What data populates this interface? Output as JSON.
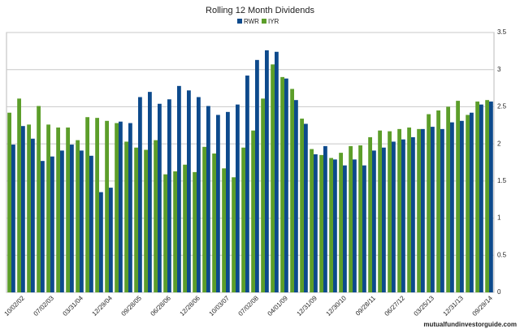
{
  "chart_data": {
    "type": "bar",
    "title": "Rolling 12 Month Dividends",
    "categories": [
      null,
      "10/02/02",
      null,
      null,
      "07/02/03",
      null,
      null,
      "03/31/04",
      null,
      null,
      "12/29/04",
      null,
      null,
      "09/28/05",
      null,
      null,
      "06/28/06",
      null,
      null,
      "12/28/06",
      null,
      null,
      "10/03/07",
      null,
      null,
      "07/02/08",
      null,
      null,
      "04/01/09",
      null,
      null,
      "12/31/09",
      null,
      null,
      "12/30/10",
      null,
      null,
      "09/28/11",
      null,
      null,
      "06/27/12",
      null,
      null,
      "03/25/13",
      null,
      null,
      "12/31/13",
      null,
      null,
      "09/29/14"
    ],
    "series": [
      {
        "name": "RWR",
        "color": "#0d4a8c",
        "values": [
          1.99,
          2.24,
          2.07,
          1.77,
          1.83,
          1.91,
          1.99,
          1.91,
          1.84,
          1.35,
          1.41,
          2.3,
          2.28,
          2.63,
          2.7,
          2.54,
          2.6,
          2.78,
          2.72,
          2.63,
          2.51,
          2.39,
          2.43,
          2.53,
          2.92,
          3.13,
          3.26,
          3.24,
          2.88,
          2.59,
          2.27,
          1.86,
          1.97,
          1.79,
          1.71,
          1.79,
          1.71,
          1.91,
          1.95,
          2.03,
          2.06,
          2.09,
          2.2,
          2.23,
          2.2,
          2.29,
          2.31,
          2.42,
          2.53,
          2.57
        ]
      },
      {
        "name": "IYR",
        "color": "#5c9e2a",
        "values": [
          2.42,
          2.61,
          2.26,
          2.51,
          2.26,
          2.22,
          2.22,
          2.05,
          2.36,
          2.35,
          2.31,
          2.28,
          2.03,
          1.95,
          1.92,
          2.05,
          1.59,
          1.63,
          1.72,
          1.62,
          1.96,
          1.87,
          1.67,
          1.55,
          1.95,
          2.18,
          2.61,
          3.07,
          2.9,
          2.74,
          2.34,
          1.93,
          1.85,
          1.81,
          1.88,
          1.97,
          1.98,
          2.09,
          2.18,
          2.17,
          2.2,
          2.22,
          2.2,
          2.4,
          2.45,
          2.5,
          2.58,
          2.39,
          2.57,
          2.59
        ]
      }
    ],
    "ylim": [
      0,
      3.5
    ],
    "yticks": [
      0,
      0.5,
      1,
      1.5,
      2,
      2.5,
      3,
      3.5
    ],
    "grid": true,
    "legend": "top",
    "watermark": "mutualfundinvestorguide.com"
  }
}
